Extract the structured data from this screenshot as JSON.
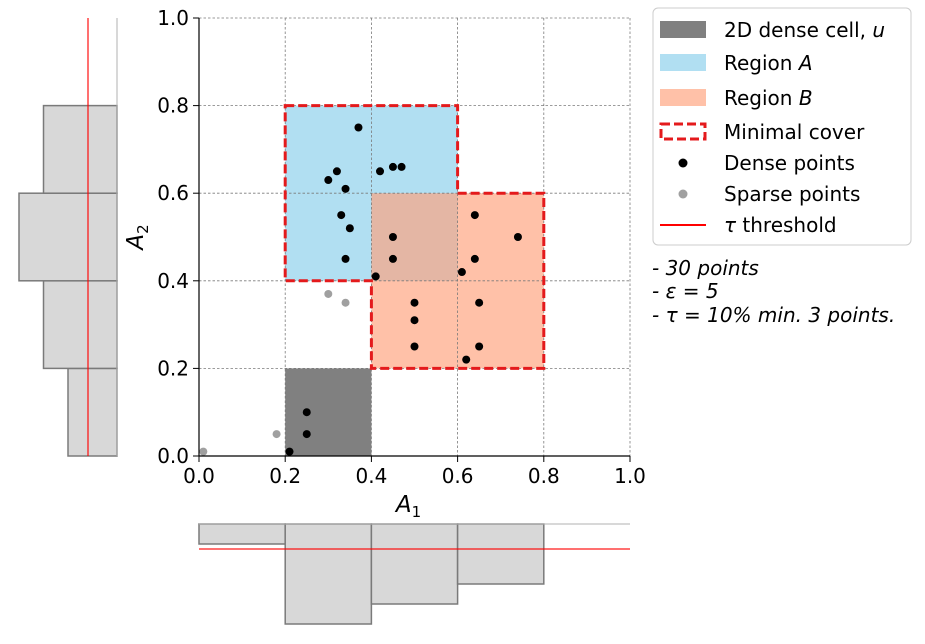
{
  "chart_data": {
    "type": "scatter",
    "title": "",
    "xlabel": "A",
    "xlabel_sub": "1",
    "ylabel": "A",
    "ylabel_sub": "2",
    "xlim": [
      0,
      1
    ],
    "ylim": [
      0,
      1
    ],
    "x_ticks": [
      "0.0",
      "0.2",
      "0.4",
      "0.6",
      "0.8",
      "1.0"
    ],
    "y_ticks": [
      "0.0",
      "0.2",
      "0.4",
      "0.6",
      "0.8",
      "1.0"
    ],
    "grid": true,
    "legend_position": "outside-right",
    "regions": [
      {
        "name": "Region A",
        "x": [
          0.2,
          0.6
        ],
        "y": [
          0.4,
          0.8
        ],
        "color": "#87ceeb"
      },
      {
        "name": "Region B",
        "x": [
          0.4,
          0.8
        ],
        "y": [
          0.2,
          0.6
        ],
        "color": "#ffa07a"
      },
      {
        "name": "2D dense cell, u",
        "x": [
          0.2,
          0.4
        ],
        "y": [
          0.0,
          0.2
        ],
        "color": "#808080"
      }
    ],
    "minimal_cover": [
      [
        0.2,
        0.8
      ],
      [
        0.6,
        0.8
      ],
      [
        0.6,
        0.6
      ],
      [
        0.8,
        0.6
      ],
      [
        0.8,
        0.2
      ],
      [
        0.4,
        0.2
      ],
      [
        0.4,
        0.4
      ],
      [
        0.2,
        0.4
      ]
    ],
    "series": [
      {
        "name": "Dense points",
        "color": "#000000",
        "points": [
          [
            0.37,
            0.75
          ],
          [
            0.45,
            0.66
          ],
          [
            0.47,
            0.66
          ],
          [
            0.32,
            0.65
          ],
          [
            0.42,
            0.65
          ],
          [
            0.3,
            0.63
          ],
          [
            0.34,
            0.61
          ],
          [
            0.33,
            0.55
          ],
          [
            0.64,
            0.55
          ],
          [
            0.35,
            0.52
          ],
          [
            0.45,
            0.5
          ],
          [
            0.74,
            0.5
          ],
          [
            0.34,
            0.45
          ],
          [
            0.45,
            0.45
          ],
          [
            0.64,
            0.45
          ],
          [
            0.61,
            0.42
          ],
          [
            0.41,
            0.41
          ],
          [
            0.5,
            0.35
          ],
          [
            0.65,
            0.35
          ],
          [
            0.5,
            0.31
          ],
          [
            0.5,
            0.25
          ],
          [
            0.65,
            0.25
          ],
          [
            0.62,
            0.22
          ],
          [
            0.25,
            0.1
          ],
          [
            0.25,
            0.05
          ],
          [
            0.21,
            0.01
          ]
        ]
      },
      {
        "name": "Sparse points",
        "color": "#a0a0a0",
        "points": [
          [
            0.3,
            0.37
          ],
          [
            0.34,
            0.35
          ],
          [
            0.18,
            0.05
          ],
          [
            0.01,
            0.01
          ]
        ]
      }
    ],
    "threshold": {
      "name": "τ threshold",
      "color": "#ff0000"
    },
    "top_x_histogram": {
      "bins": [
        0,
        0.2,
        0.4,
        0.6,
        0.8,
        1.0
      ],
      "values": [
        1,
        5,
        4,
        3,
        0
      ]
    },
    "left_y_histogram": {
      "bins": [
        0,
        0.2,
        0.4,
        0.6,
        0.8,
        1.0
      ],
      "values": [
        2,
        3,
        4,
        3,
        0
      ]
    },
    "legend": [
      {
        "key": "dense_cell",
        "label_prefix": "2D dense cell, ",
        "label_math": "u",
        "label_suffix": ""
      },
      {
        "key": "region_a",
        "label_prefix": "Region ",
        "label_math": "A",
        "label_suffix": ""
      },
      {
        "key": "region_b",
        "label_prefix": "Region ",
        "label_math": "B",
        "label_suffix": ""
      },
      {
        "key": "minimal_cover",
        "label_prefix": "Minimal cover",
        "label_math": "",
        "label_suffix": ""
      },
      {
        "key": "dense_points",
        "label_prefix": "Dense points",
        "label_math": "",
        "label_suffix": ""
      },
      {
        "key": "sparse_points",
        "label_prefix": "Sparse points",
        "label_math": "",
        "label_suffix": ""
      },
      {
        "key": "threshold",
        "label_prefix": "",
        "label_math": "τ",
        "label_suffix": " threshold"
      }
    ],
    "annotations": [
      "- 30 points",
      "- ε = 5",
      "- τ = 10% min. 3 points."
    ]
  }
}
